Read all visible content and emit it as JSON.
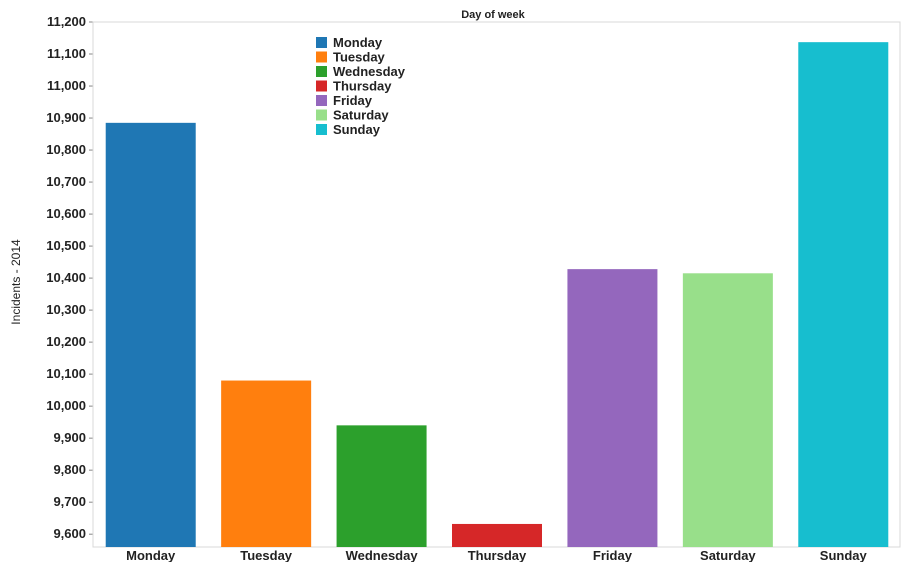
{
  "chart_data": {
    "type": "bar",
    "title": "Day of week",
    "xlabel": "",
    "ylabel": "Incidents - 2014",
    "categories": [
      "Monday",
      "Tuesday",
      "Wednesday",
      "Thursday",
      "Friday",
      "Saturday",
      "Sunday"
    ],
    "values": [
      10885,
      10080,
      9940,
      9632,
      10428,
      10415,
      11137
    ],
    "colors": [
      "#1f77b4",
      "#ff7f0e",
      "#2ca02c",
      "#d62728",
      "#9467bd",
      "#98df8a",
      "#17becf"
    ],
    "ylim": [
      9560,
      11200
    ],
    "yticks": [
      9600,
      9700,
      9800,
      9900,
      10000,
      10100,
      10200,
      10300,
      10400,
      10500,
      10600,
      10700,
      10800,
      10900,
      11000,
      11100,
      11200
    ],
    "ytick_labels": [
      "9,600",
      "9,700",
      "9,800",
      "9,900",
      "10,000",
      "10,100",
      "10,200",
      "10,300",
      "10,400",
      "10,500",
      "10,600",
      "10,700",
      "10,800",
      "10,900",
      "11,000",
      "11,100",
      "11,200"
    ],
    "legend": {
      "position": "top-center",
      "entries": [
        "Monday",
        "Tuesday",
        "Wednesday",
        "Thursday",
        "Friday",
        "Saturday",
        "Sunday"
      ]
    },
    "grid": false
  }
}
